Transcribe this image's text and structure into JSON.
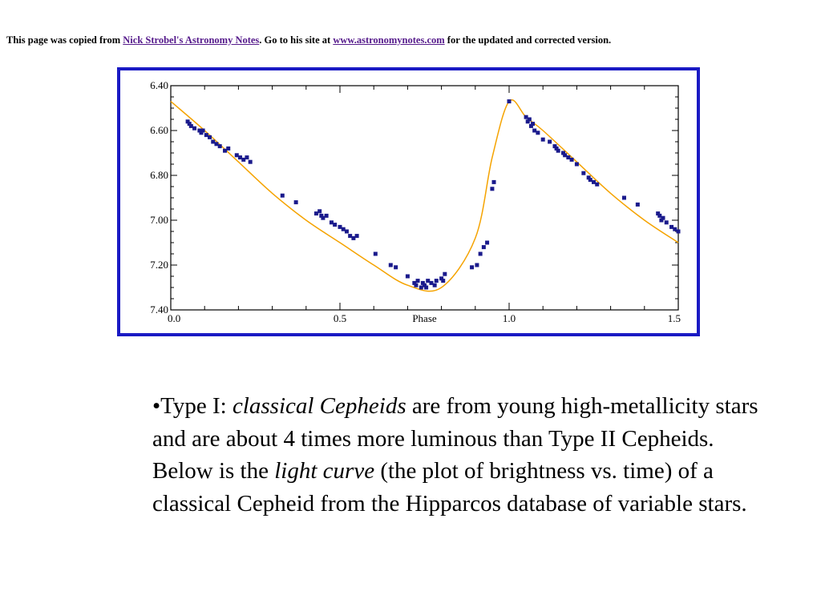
{
  "header": {
    "prefix": "This page was copied from ",
    "link1": "Nick Strobel's Astronomy Notes",
    "middle": ". Go to his site at ",
    "link2": "www.astronomynotes.com",
    "suffix": " for the updated and corrected version."
  },
  "paragraph": {
    "bullet": "•Type I: ",
    "term1": "classical Cepheids",
    "text1": " are from young high-metallicity stars and are about 4 times more luminous than Type II Cepheids. Below is the ",
    "term2": "light curve",
    "text2": " (the plot of brightness vs. time) of a classical Cepheid from the Hipparcos database of variable stars."
  },
  "colors": {
    "frame": "#1a1ac4",
    "curve": "#f5a300",
    "points": "#1a1a8c"
  },
  "chart_data": {
    "type": "scatter",
    "xlabel": "Phase",
    "ylabel": "",
    "xlim": [
      0,
      1.5
    ],
    "ylim": [
      7.4,
      6.4
    ],
    "y_inverted": true,
    "x_ticks": [
      "0.0",
      "0.5",
      "1.0",
      "1.5"
    ],
    "y_ticks": [
      "6.40",
      "6.60",
      "6.80",
      "7.00",
      "7.20",
      "7.40"
    ],
    "curve": {
      "x": [
        0.0,
        0.1,
        0.2,
        0.3,
        0.4,
        0.5,
        0.6,
        0.7,
        0.8,
        0.9,
        0.95,
        1.0,
        1.05,
        1.1,
        1.2,
        1.3,
        1.4,
        1.5
      ],
      "y": [
        6.47,
        6.6,
        6.74,
        6.88,
        7.0,
        7.1,
        7.2,
        7.29,
        7.3,
        7.08,
        6.72,
        6.47,
        6.54,
        6.6,
        6.74,
        6.88,
        7.0,
        7.1
      ]
    },
    "series": [
      {
        "x": [
          0.05,
          0.055,
          0.06,
          0.07,
          0.085,
          0.09,
          0.095,
          0.105,
          0.115,
          0.125,
          0.135,
          0.145,
          0.16,
          0.17,
          0.195,
          0.205,
          0.215,
          0.225,
          0.235,
          0.33,
          0.37,
          0.43,
          0.44,
          0.445,
          0.45,
          0.46,
          0.475,
          0.485,
          0.5,
          0.51,
          0.52,
          0.53,
          0.54,
          0.55,
          0.605,
          0.65,
          0.665,
          0.7,
          0.72,
          0.725,
          0.73,
          0.74,
          0.745,
          0.75,
          0.755,
          0.76,
          0.77,
          0.78,
          0.785,
          0.8,
          0.805,
          0.81,
          0.89,
          0.905,
          0.915,
          0.925,
          0.935,
          0.95,
          0.955,
          1.0,
          1.05,
          1.055,
          1.06,
          1.065,
          1.07,
          1.075,
          1.085,
          1.1,
          1.12,
          1.135,
          1.14,
          1.145,
          1.16,
          1.165,
          1.175,
          1.185,
          1.2,
          1.22,
          1.235,
          1.24,
          1.25,
          1.26,
          1.34,
          1.38,
          1.44,
          1.445,
          1.45,
          1.455,
          1.465,
          1.48,
          1.49,
          1.5
        ],
        "y": [
          6.56,
          6.57,
          6.58,
          6.59,
          6.6,
          6.61,
          6.6,
          6.62,
          6.63,
          6.65,
          6.66,
          6.67,
          6.69,
          6.68,
          6.71,
          6.72,
          6.73,
          6.72,
          6.74,
          6.89,
          6.92,
          6.97,
          6.96,
          6.98,
          6.99,
          6.98,
          7.01,
          7.02,
          7.03,
          7.04,
          7.05,
          7.07,
          7.08,
          7.07,
          7.15,
          7.2,
          7.21,
          7.25,
          7.28,
          7.29,
          7.27,
          7.3,
          7.28,
          7.29,
          7.3,
          7.27,
          7.28,
          7.29,
          7.27,
          7.26,
          7.27,
          7.24,
          7.21,
          7.2,
          7.15,
          7.12,
          7.1,
          6.86,
          6.83,
          6.47,
          6.54,
          6.56,
          6.55,
          6.58,
          6.57,
          6.6,
          6.61,
          6.64,
          6.65,
          6.67,
          6.68,
          6.69,
          6.7,
          6.71,
          6.72,
          6.73,
          6.75,
          6.79,
          6.81,
          6.82,
          6.83,
          6.84,
          6.9,
          6.93,
          6.97,
          6.98,
          7.0,
          6.99,
          7.01,
          7.03,
          7.04,
          7.05
        ]
      }
    ]
  }
}
